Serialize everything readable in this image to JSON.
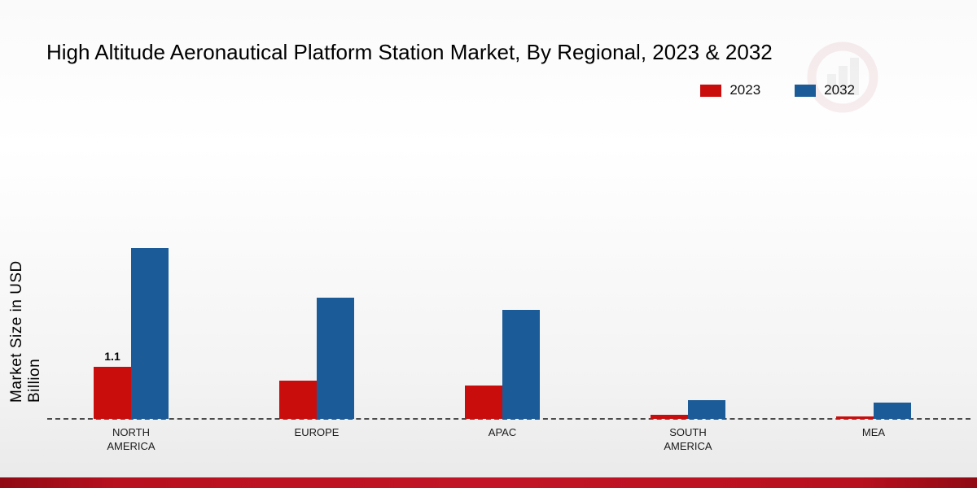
{
  "chart_data": {
    "type": "bar",
    "title": "High Altitude Aeronautical Platform Station Market, By Regional, 2023 & 2032",
    "ylabel": "Market Size in USD Billion",
    "xlabel": "",
    "categories": [
      "NORTH AMERICA",
      "EUROPE",
      "APAC",
      "SOUTH AMERICA",
      "MEA"
    ],
    "series": [
      {
        "name": "2023",
        "color": "#c90d0d",
        "values": [
          1.1,
          0.8,
          0.7,
          0.08,
          0.05
        ],
        "data_labels": [
          "1.1",
          "",
          "",
          "",
          ""
        ]
      },
      {
        "name": "2032",
        "color": "#1b5b97",
        "values": [
          3.6,
          2.55,
          2.3,
          0.4,
          0.35
        ],
        "data_labels": [
          "",
          "",
          "",
          "",
          ""
        ]
      }
    ],
    "ylim": [
      0,
      3.9
    ],
    "grid": false,
    "legend_position": "top-right",
    "baseline_style": "dashed"
  },
  "colors": {
    "series_2023": "#c90d0d",
    "series_2032": "#1b5b97",
    "footer_bar": "#b8101f",
    "baseline": "#4a4a4a"
  }
}
